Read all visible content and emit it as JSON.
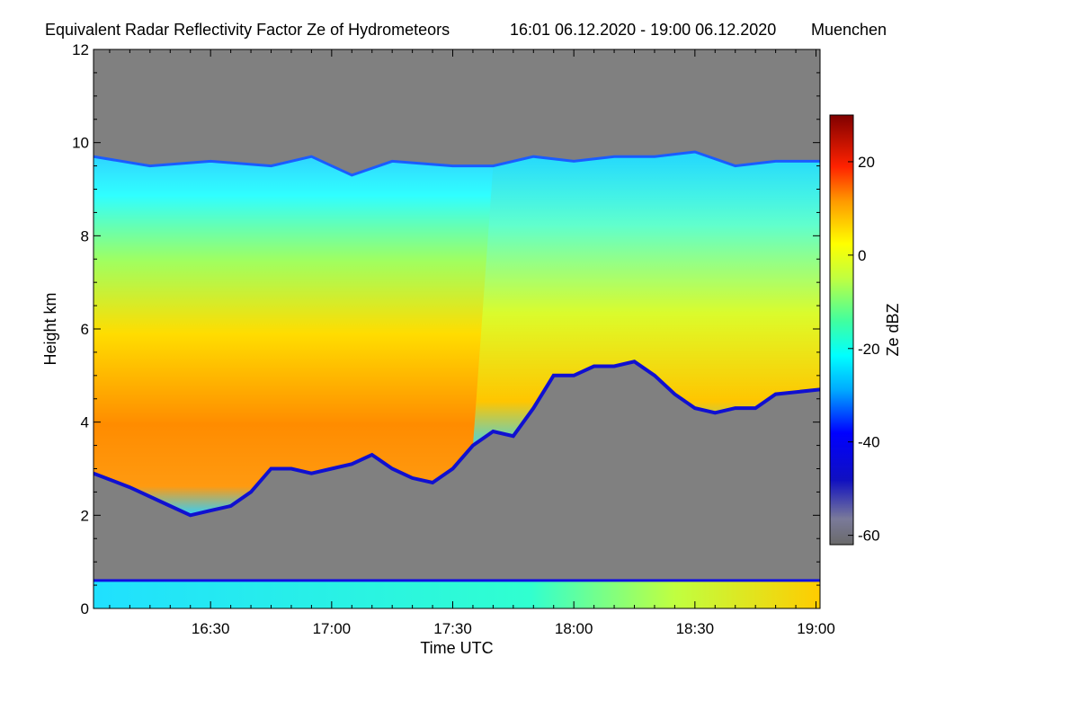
{
  "chart_data": {
    "type": "heatmap",
    "title": "Equivalent Radar Reflectivity Factor Ze of Hydrometeors",
    "time_range_label": "16:01 06.12.2020 - 19:00 06.12.2020",
    "location": "Muenchen",
    "xlabel": "Time UTC",
    "ylabel": "Height km",
    "x_ticks": [
      "16:30",
      "17:00",
      "17:30",
      "18:00",
      "18:30",
      "19:00"
    ],
    "x_tick_minutes": [
      30,
      60,
      90,
      120,
      150,
      180
    ],
    "xlim_minutes": [
      1,
      181
    ],
    "y_ticks": [
      0,
      2,
      4,
      6,
      8,
      10,
      12
    ],
    "ylim": [
      0,
      12
    ],
    "colorbar": {
      "label": "Ze dBZ",
      "ticks": [
        20,
        0,
        -20,
        -40,
        -60
      ],
      "range": [
        -62,
        30
      ],
      "no_signal_color": "#808080"
    },
    "colors": {
      "background_no_echo": "#808080",
      "strong_echo": "#ff6a00",
      "weak_echo": "#0000ff"
    },
    "features": {
      "cloud_top_km": [
        [
          1,
          9.7
        ],
        [
          15,
          9.5
        ],
        [
          30,
          9.6
        ],
        [
          45,
          9.5
        ],
        [
          55,
          9.7
        ],
        [
          65,
          9.3
        ],
        [
          75,
          9.6
        ],
        [
          90,
          9.5
        ],
        [
          100,
          9.5
        ],
        [
          110,
          9.7
        ],
        [
          120,
          9.6
        ],
        [
          130,
          9.7
        ],
        [
          140,
          9.7
        ],
        [
          150,
          9.8
        ],
        [
          160,
          9.5
        ],
        [
          170,
          9.6
        ],
        [
          181,
          9.6
        ]
      ],
      "cloud_base_km": [
        [
          1,
          2.9
        ],
        [
          10,
          2.6
        ],
        [
          20,
          2.2
        ],
        [
          25,
          2.0
        ],
        [
          30,
          2.1
        ],
        [
          35,
          2.2
        ],
        [
          40,
          2.5
        ],
        [
          45,
          3.0
        ],
        [
          50,
          3.0
        ],
        [
          55,
          2.9
        ],
        [
          60,
          3.0
        ],
        [
          65,
          3.1
        ],
        [
          70,
          3.3
        ],
        [
          75,
          3.0
        ],
        [
          80,
          2.8
        ],
        [
          85,
          2.7
        ],
        [
          90,
          3.0
        ],
        [
          95,
          3.5
        ],
        [
          100,
          3.8
        ],
        [
          105,
          3.7
        ],
        [
          110,
          4.3
        ],
        [
          115,
          5.0
        ],
        [
          120,
          5.0
        ],
        [
          125,
          5.2
        ],
        [
          130,
          5.2
        ],
        [
          135,
          5.3
        ],
        [
          140,
          5.0
        ],
        [
          145,
          4.6
        ],
        [
          150,
          4.3
        ],
        [
          155,
          4.2
        ],
        [
          160,
          4.3
        ],
        [
          165,
          4.3
        ],
        [
          170,
          4.6
        ],
        [
          181,
          4.7
        ]
      ],
      "boundary_layer_top_km": 0.6
    }
  }
}
